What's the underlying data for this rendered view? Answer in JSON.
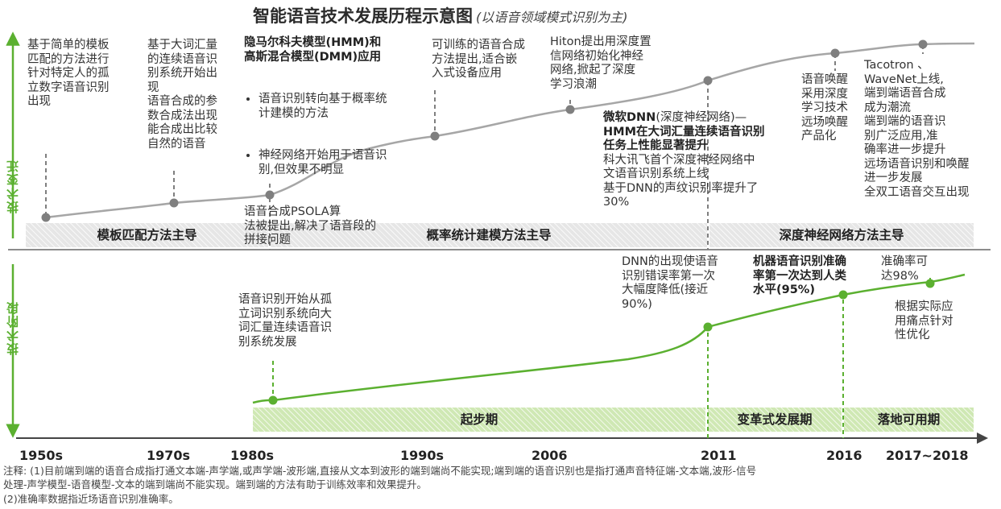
{
  "title": "智能语音技术发展历程示意图",
  "subtitle": "(以语音领域模式识别为主)",
  "axis_labels": {
    "top": "技术变迁",
    "bottom": "技术阶段"
  },
  "bands_top": [
    "模板匹配方法主导",
    "概率统计建模方法主导",
    "深度神经网络方法主导"
  ],
  "bands_bottom": [
    "起步期",
    "变革式发展期",
    "落地可用期"
  ],
  "years": [
    "1950s",
    "1970s",
    "1980s",
    "1990s",
    "2006",
    "2011",
    "2016",
    "2017~2018"
  ],
  "events_top": {
    "e1950": "基于简单的模板\n匹配的方法进行\n针对特定人的孤\n立数字语音识别\n出现",
    "e1970": "基于大词汇量\n的连续语音识\n别系统开始出\n现\n语音合成的参\n数合成法出现\n能合成出比较\n自然的语音",
    "e1980_title": "隐马尔科夫模型(HMM)和\n高斯混合模型(DMM)应用",
    "e1980_b1": "语音识别转向基于概率统\n计建模的方法",
    "e1980_b2": "神经网络开始用于语音识\n别,但效果不明显",
    "e1980_tail": "语音合成PSOLA算\n法被提出,解决了语音段的\n拼接问题",
    "e1990": "可训练的语音合成\n方法提出,适合嵌\n入式设备应用",
    "e2006": "Hiton提出用深度置\n信网络初始化神经\n网络,掀起了深度\n学习浪潮",
    "e2011_bold": "微软DNN",
    "e2011_normal": "(深度神经网络)—",
    "e2011_bold2": "HMM在大词汇量连续语音识别\n任务上性能显著提升",
    "e2011_tail": "科大讯飞首个深度神经网络中\n文语音识别系统上线\n基于DNN的声纹识别率提升了\n30%",
    "e2016": "语音唤醒\n采用深度\n学习技术\n远场唤醒\n产品化",
    "e2018": "Tacotron 、\nWaveNet上线,\n端到端语音合成\n成为潮流\n端到端的语音识\n别广泛应用,准\n确率进一步提升\n远场语音识别和唤醒\n进一步发展\n全双工语音交互出现"
  },
  "events_bottom": {
    "e1980": "语音识别开始从孤\n立词识别系统向大\n词汇量连续语音识\n别系统发展",
    "e2011": "DNN的出现使语音\n识别错误率第一次\n大幅度降低(接近\n90%)",
    "e2016": "机器语音识别准确\n率第一次达到人类\n水平(95%)",
    "e2018_a": "准确率可\n达98%",
    "e2018_b": "根据实际应\n用痛点针对\n性优化"
  },
  "notes": [
    "注释: (1)目前端到端的语音合成指打通文本端-声学端,或声学端-波形端,直接从文本到波形的端到端尚不能实现;端到端的语音识别也是指打通声音特征端-文本端,波形-信号",
    "处理-声学模型-语音模型-文本的端到端尚不能实现。端到端的方法有助于训练效率和效果提升。",
    "(2)准确率数据指近场语音识别准确率。"
  ],
  "colors": {
    "accent_green": "#5bb030",
    "curve_gray": "#a6a6a6",
    "dot_gray": "#7f7f7f"
  }
}
